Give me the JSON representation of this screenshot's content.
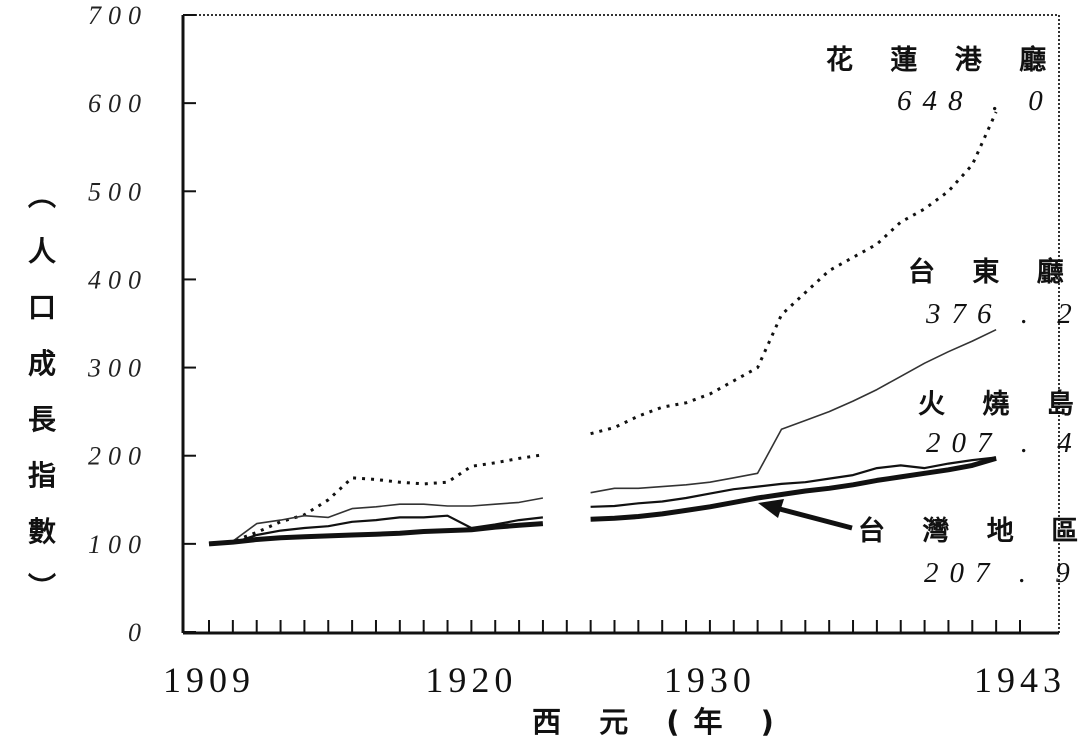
{
  "chart_data": {
    "type": "line",
    "title": "",
    "xlabel": "西 元 (年 )",
    "ylabel": "(人口成長指數)",
    "xlim": [
      1909,
      1943
    ],
    "ylim": [
      0,
      700
    ],
    "x_ticks": [
      "1909",
      "1920",
      "1930",
      "1943"
    ],
    "y_ticks": [
      "0",
      "100",
      "200",
      "300",
      "400",
      "500",
      "600",
      "700"
    ],
    "grid": false,
    "series": [
      {
        "name": "花 蓮 港 廳",
        "end_label": "648 . 0",
        "style": "dotted",
        "segments": [
          {
            "x": [
              1909,
              1910,
              1911,
              1912,
              1913,
              1914,
              1915,
              1916,
              1917,
              1918,
              1919,
              1920,
              1921,
              1922,
              1923
            ],
            "y": [
              100,
              103,
              113,
              125,
              133,
              150,
              175,
              173,
              170,
              168,
              170,
              188,
              192,
              197,
              201
            ]
          },
          {
            "x": [
              1925,
              1926,
              1927,
              1928,
              1929,
              1930,
              1931,
              1932,
              1933,
              1934,
              1935,
              1936,
              1937,
              1938,
              1939,
              1940,
              1941,
              1942
            ],
            "y": [
              225,
              232,
              245,
              255,
              260,
              270,
              285,
              300,
              360,
              385,
              410,
              425,
              440,
              465,
              480,
              500,
              530,
              590
            ]
          }
        ]
      },
      {
        "name": "台 東 廳",
        "end_label": "376 . 2",
        "style": "thin",
        "segments": [
          {
            "x": [
              1909,
              1910,
              1911,
              1912,
              1913,
              1914,
              1915,
              1916,
              1917,
              1918,
              1919,
              1920,
              1921,
              1922,
              1923
            ],
            "y": [
              100,
              103,
              123,
              127,
              132,
              130,
              140,
              142,
              145,
              145,
              143,
              143,
              145,
              147,
              152
            ]
          },
          {
            "x": [
              1925,
              1926,
              1927,
              1928,
              1929,
              1930,
              1931,
              1932,
              1933,
              1934,
              1935,
              1936,
              1937,
              1938,
              1939,
              1940,
              1941,
              1942
            ],
            "y": [
              158,
              163,
              163,
              165,
              167,
              170,
              175,
              180,
              230,
              240,
              250,
              262,
              275,
              290,
              305,
              318,
              330,
              343
            ]
          }
        ]
      },
      {
        "name": "火 燒 島",
        "end_label": "207 . 4",
        "style": "medium",
        "segments": [
          {
            "x": [
              1909,
              1910,
              1911,
              1912,
              1913,
              1914,
              1915,
              1916,
              1917,
              1918,
              1919,
              1920,
              1921,
              1922,
              1923
            ],
            "y": [
              100,
              101,
              110,
              115,
              118,
              120,
              125,
              127,
              130,
              130,
              132,
              118,
              122,
              127,
              130
            ]
          },
          {
            "x": [
              1925,
              1926,
              1927,
              1928,
              1929,
              1930,
              1931,
              1932,
              1933,
              1934,
              1935,
              1936,
              1937,
              1938,
              1939,
              1940,
              1941,
              1942
            ],
            "y": [
              142,
              143,
              146,
              148,
              152,
              157,
              162,
              165,
              168,
              170,
              174,
              178,
              186,
              189,
              186,
              191,
              195,
              198
            ]
          }
        ]
      },
      {
        "name": "台 灣 地 區",
        "end_label": "207 . 9",
        "style": "thick",
        "segments": [
          {
            "x": [
              1909,
              1910,
              1911,
              1912,
              1913,
              1914,
              1915,
              1916,
              1917,
              1918,
              1919,
              1920,
              1921,
              1922,
              1923
            ],
            "y": [
              100,
              102,
              105,
              107,
              108,
              109,
              110,
              111,
              112,
              114,
              115,
              116,
              119,
              121,
              123
            ]
          },
          {
            "x": [
              1925,
              1926,
              1927,
              1928,
              1929,
              1930,
              1931,
              1932,
              1933,
              1934,
              1935,
              1936,
              1937,
              1938,
              1939,
              1940,
              1941,
              1942
            ],
            "y": [
              128,
              129,
              131,
              134,
              138,
              142,
              147,
              152,
              156,
              160,
              163,
              167,
              172,
              176,
              180,
              184,
              189,
              197
            ]
          }
        ]
      }
    ],
    "colors": {
      "ink": "#111111",
      "axis": "#222222"
    }
  }
}
